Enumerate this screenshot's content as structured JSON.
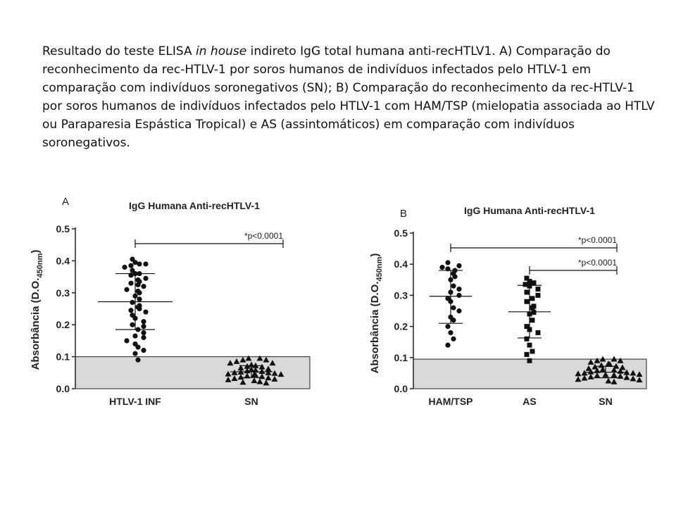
{
  "caption": {
    "part1": "Resultado do teste ELISA ",
    "italic": "in house",
    "part2": " indireto IgG total humana anti-recHTLV1.  A) Comparação do reconhecimento da rec-HTLV-1  por soros humanos de indivíduos infectados pelo HTLV-1  em comparação com indivíduos soronegativos (SN); B) Comparação do reconhecimento da rec-HTLV-1 por soros humanos de indivíduos infectados pelo HTLV-1 com HAM/TSP (mielopatia associada ao HTLV ou Paraparesia Espástica Tropical) e AS (assintomáticos) em comparação com indivíduos soronegativos."
  },
  "chart_data": [
    {
      "panel": "A",
      "type": "scatter",
      "title": "IgG Humana Anti-recHTLV-1",
      "ylabel": "Absorbância (D.O.",
      "ylabel_sub": "450nm",
      "ylabel_close": ")",
      "ylim": [
        0,
        0.5
      ],
      "yticks": [
        "0.0",
        "0.1",
        "0.2",
        "0.3",
        "0.4",
        "0.5"
      ],
      "cutoff": 0.1,
      "categories": [
        "HTLV-1 INF",
        "SN"
      ],
      "series": [
        {
          "marker": "circle",
          "mean": 0.272,
          "sd_low": 0.185,
          "sd_high": 0.36,
          "values": [
            0.405,
            0.395,
            0.39,
            0.385,
            0.39,
            0.38,
            0.37,
            0.36,
            0.36,
            0.355,
            0.345,
            0.34,
            0.335,
            0.33,
            0.325,
            0.32,
            0.31,
            0.305,
            0.3,
            0.29,
            0.28,
            0.27,
            0.26,
            0.255,
            0.25,
            0.245,
            0.24,
            0.23,
            0.22,
            0.21,
            0.2,
            0.195,
            0.185,
            0.175,
            0.165,
            0.16,
            0.15,
            0.14,
            0.13,
            0.12,
            0.11,
            0.09
          ]
        },
        {
          "marker": "triangle",
          "mean": 0.053,
          "sd_low": 0.035,
          "sd_high": 0.072,
          "values": [
            0.095,
            0.095,
            0.09,
            0.09,
            0.085,
            0.08,
            0.08,
            0.075,
            0.072,
            0.07,
            0.068,
            0.065,
            0.062,
            0.06,
            0.058,
            0.056,
            0.054,
            0.052,
            0.05,
            0.05,
            0.048,
            0.046,
            0.045,
            0.044,
            0.042,
            0.04,
            0.038,
            0.036,
            0.034,
            0.032,
            0.03,
            0.028,
            0.025,
            0.022,
            0.02,
            0.018
          ]
        }
      ],
      "comparisons": [
        {
          "from": 0,
          "to": 1,
          "label": "*p<0.0001"
        }
      ]
    },
    {
      "panel": "B",
      "type": "scatter",
      "title": "IgG Humana Anti-recHTLV-1",
      "ylabel": "Absorbância (D.O.",
      "ylabel_sub": "450nm",
      "ylabel_close": ")",
      "ylim": [
        0,
        0.5
      ],
      "yticks": [
        "0.0",
        "0.1",
        "0.2",
        "0.3",
        "0.4",
        "0.5"
      ],
      "cutoff": 0.095,
      "categories": [
        "HAM/TSP",
        "AS",
        "SN"
      ],
      "series": [
        {
          "marker": "circle",
          "mean": 0.297,
          "sd_low": 0.21,
          "sd_high": 0.38,
          "values": [
            0.405,
            0.395,
            0.39,
            0.385,
            0.38,
            0.37,
            0.36,
            0.35,
            0.33,
            0.32,
            0.31,
            0.3,
            0.29,
            0.28,
            0.26,
            0.25,
            0.23,
            0.22,
            0.2,
            0.18,
            0.16,
            0.14
          ]
        },
        {
          "marker": "square",
          "mean": 0.247,
          "sd_low": 0.163,
          "sd_high": 0.332,
          "values": [
            0.355,
            0.345,
            0.34,
            0.335,
            0.33,
            0.32,
            0.31,
            0.3,
            0.29,
            0.28,
            0.265,
            0.26,
            0.245,
            0.24,
            0.22,
            0.2,
            0.19,
            0.18,
            0.16,
            0.14,
            0.12,
            0.11,
            0.09
          ]
        },
        {
          "marker": "triangle",
          "mean": 0.053,
          "sd_low": 0.035,
          "sd_high": 0.072,
          "values": [
            0.095,
            0.095,
            0.09,
            0.09,
            0.085,
            0.08,
            0.078,
            0.075,
            0.072,
            0.07,
            0.068,
            0.065,
            0.062,
            0.06,
            0.058,
            0.056,
            0.054,
            0.052,
            0.05,
            0.05,
            0.048,
            0.046,
            0.045,
            0.044,
            0.042,
            0.04,
            0.038,
            0.036,
            0.034,
            0.032,
            0.03,
            0.028,
            0.025,
            0.022
          ]
        }
      ],
      "comparisons": [
        {
          "from": 0,
          "to": 2,
          "label": "*p<0.0001"
        },
        {
          "from": 1,
          "to": 2,
          "label": "*p<0.0001"
        }
      ]
    }
  ]
}
